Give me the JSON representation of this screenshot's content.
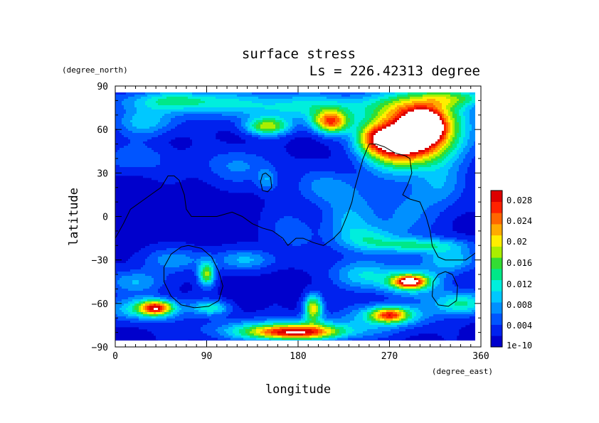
{
  "chart_data": {
    "type": "heatmap",
    "title": "surface stress",
    "subtitle": "Ls = 226.42313 degree",
    "xlabel": "longitude",
    "ylabel": "latitude",
    "xunit": "(degree_east)",
    "yunit": "(degree_north)",
    "xlim": [
      0,
      360
    ],
    "ylim": [
      -90,
      90
    ],
    "xticks": [
      0,
      90,
      180,
      270,
      360
    ],
    "yticks": [
      90,
      60,
      30,
      0,
      -30,
      -60,
      -90
    ],
    "colorbar": {
      "ticks": [
        "0.028",
        "0.024",
        "0.02",
        "0.016",
        "0.012",
        "0.008",
        "0.004",
        "1e-10"
      ],
      "min": 0,
      "max": 0.03,
      "colors": [
        "#0000cc",
        "#0022ee",
        "#0055ff",
        "#0090ff",
        "#00c8ff",
        "#00eedd",
        "#00e888",
        "#33dd33",
        "#aaee00",
        "#ffee00",
        "#ffaa00",
        "#ff6600",
        "#ff2200",
        "#dd0000"
      ]
    },
    "blobs": [
      {
        "lon": 300,
        "lat": 60,
        "rl": 40,
        "rb": 22,
        "v": 0.033
      },
      {
        "lon": 305,
        "lat": 62,
        "rl": 14,
        "rb": 8,
        "v": 0.022
      },
      {
        "lon": 272,
        "lat": 48,
        "rl": 30,
        "rb": 14,
        "v": 0.016
      },
      {
        "lon": 255,
        "lat": 55,
        "rl": 18,
        "rb": 10,
        "v": 0.012
      },
      {
        "lon": 212,
        "lat": 65,
        "rl": 18,
        "rb": 8,
        "v": 0.022
      },
      {
        "lon": 150,
        "lat": 62,
        "rl": 22,
        "rb": 6,
        "v": 0.016
      },
      {
        "lon": 185,
        "lat": 76,
        "rl": 110,
        "rb": 10,
        "v": 0.01
      },
      {
        "lon": 60,
        "lat": 80,
        "rl": 55,
        "rb": 7,
        "v": 0.01
      },
      {
        "lon": 340,
        "lat": 82,
        "rl": 40,
        "rb": 6,
        "v": 0.009
      },
      {
        "lon": 30,
        "lat": 65,
        "rl": 30,
        "rb": 10,
        "v": 0.008
      },
      {
        "lon": 20,
        "lat": 40,
        "rl": 30,
        "rb": 10,
        "v": 0.005
      },
      {
        "lon": 120,
        "lat": 35,
        "rl": 40,
        "rb": 12,
        "v": 0.005
      },
      {
        "lon": 210,
        "lat": 20,
        "rl": 30,
        "rb": 12,
        "v": 0.006
      },
      {
        "lon": 230,
        "lat": -5,
        "rl": 25,
        "rb": 20,
        "v": 0.006
      },
      {
        "lon": 280,
        "lat": 0,
        "rl": 40,
        "rb": 25,
        "v": 0.005
      },
      {
        "lon": 320,
        "lat": 20,
        "rl": 25,
        "rb": 15,
        "v": 0.005
      },
      {
        "lon": 300,
        "lat": -20,
        "rl": 45,
        "rb": 5,
        "v": 0.01
      },
      {
        "lon": 250,
        "lat": -15,
        "rl": 25,
        "rb": 8,
        "v": 0.006
      },
      {
        "lon": 290,
        "lat": -45,
        "rl": 32,
        "rb": 9,
        "v": 0.014
      },
      {
        "lon": 290,
        "lat": -45,
        "rl": 15,
        "rb": 4,
        "v": 0.019
      },
      {
        "lon": 240,
        "lat": -40,
        "rl": 28,
        "rb": 10,
        "v": 0.008
      },
      {
        "lon": 330,
        "lat": -30,
        "rl": 30,
        "rb": 8,
        "v": 0.008
      },
      {
        "lon": 340,
        "lat": -60,
        "rl": 28,
        "rb": 8,
        "v": 0.012
      },
      {
        "lon": 270,
        "lat": -68,
        "rl": 18,
        "rb": 5,
        "v": 0.016
      },
      {
        "lon": 270,
        "lat": -68,
        "rl": 40,
        "rb": 8,
        "v": 0.01
      },
      {
        "lon": 195,
        "lat": -63,
        "rl": 9,
        "rb": 9,
        "v": 0.019
      },
      {
        "lon": 175,
        "lat": -80,
        "rl": 45,
        "rb": 5,
        "v": 0.02
      },
      {
        "lon": 175,
        "lat": -78,
        "rl": 80,
        "rb": 8,
        "v": 0.01
      },
      {
        "lon": 40,
        "lat": -63,
        "rl": 16,
        "rb": 5,
        "v": 0.02
      },
      {
        "lon": 30,
        "lat": -64,
        "rl": 40,
        "rb": 8,
        "v": 0.01
      },
      {
        "lon": 95,
        "lat": -63,
        "rl": 18,
        "rb": 5,
        "v": 0.01
      },
      {
        "lon": 130,
        "lat": -30,
        "rl": 30,
        "rb": 7,
        "v": 0.007
      },
      {
        "lon": 90,
        "lat": -40,
        "rl": 8,
        "rb": 8,
        "v": 0.016
      },
      {
        "lon": 60,
        "lat": -30,
        "rl": 35,
        "rb": 8,
        "v": 0.006
      },
      {
        "lon": 20,
        "lat": -45,
        "rl": 30,
        "rb": 8,
        "v": 0.007
      },
      {
        "lon": 175,
        "lat": -10,
        "rl": 25,
        "rb": 15,
        "v": 0.004
      },
      {
        "lon": 150,
        "lat": 25,
        "rl": 10,
        "rb": 8,
        "v": 0.006
      }
    ],
    "contours": [
      [
        [
          0,
          -15
        ],
        [
          8,
          -5
        ],
        [
          15,
          5
        ],
        [
          25,
          10
        ],
        [
          35,
          15
        ],
        [
          45,
          20
        ],
        [
          52,
          28
        ],
        [
          58,
          28
        ],
        [
          63,
          25
        ],
        [
          68,
          15
        ],
        [
          70,
          5
        ],
        [
          75,
          0
        ],
        [
          90,
          0
        ],
        [
          100,
          0
        ],
        [
          115,
          3
        ],
        [
          125,
          0
        ],
        [
          135,
          -5
        ],
        [
          145,
          -8
        ],
        [
          155,
          -10
        ],
        [
          165,
          -15
        ],
        [
          170,
          -20
        ],
        [
          178,
          -15
        ],
        [
          185,
          -15
        ],
        [
          195,
          -18
        ],
        [
          205,
          -20
        ],
        [
          215,
          -15
        ],
        [
          222,
          -10
        ],
        [
          228,
          0
        ],
        [
          233,
          10
        ],
        [
          236,
          20
        ],
        [
          240,
          30
        ],
        [
          244,
          40
        ],
        [
          250,
          50
        ],
        [
          257,
          50
        ],
        [
          265,
          48
        ],
        [
          275,
          44
        ],
        [
          285,
          42
        ],
        [
          290,
          40
        ],
        [
          292,
          30
        ],
        [
          288,
          22
        ],
        [
          283,
          15
        ],
        [
          290,
          12
        ],
        [
          300,
          10
        ],
        [
          306,
          0
        ],
        [
          310,
          -10
        ],
        [
          312,
          -20
        ],
        [
          318,
          -28
        ],
        [
          325,
          -30
        ],
        [
          335,
          -30
        ],
        [
          345,
          -30
        ],
        [
          353,
          -26
        ],
        [
          360,
          -22
        ]
      ],
      [
        [
          72,
          -20
        ],
        [
          85,
          -22
        ],
        [
          95,
          -28
        ],
        [
          102,
          -38
        ],
        [
          106,
          -48
        ],
        [
          102,
          -58
        ],
        [
          92,
          -62
        ],
        [
          78,
          -63
        ],
        [
          65,
          -61
        ],
        [
          55,
          -55
        ],
        [
          48,
          -45
        ],
        [
          48,
          -35
        ],
        [
          55,
          -26
        ],
        [
          65,
          -21
        ],
        [
          72,
          -20
        ]
      ],
      [
        [
          325,
          -38
        ],
        [
          332,
          -40
        ],
        [
          337,
          -48
        ],
        [
          336,
          -58
        ],
        [
          328,
          -62
        ],
        [
          318,
          -61
        ],
        [
          312,
          -55
        ],
        [
          313,
          -45
        ],
        [
          318,
          -40
        ],
        [
          325,
          -38
        ]
      ],
      [
        [
          148,
          30
        ],
        [
          153,
          27
        ],
        [
          154,
          20
        ],
        [
          150,
          17
        ],
        [
          145,
          18
        ],
        [
          143,
          24
        ],
        [
          145,
          29
        ],
        [
          148,
          30
        ]
      ]
    ]
  }
}
